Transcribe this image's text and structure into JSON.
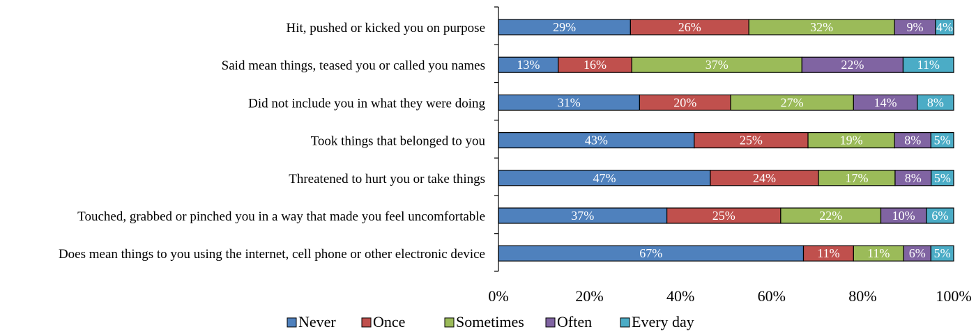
{
  "chart_data": {
    "type": "bar",
    "orientation": "horizontal",
    "stacked": "percent",
    "categories": [
      "Hit, pushed or kicked you on purpose",
      "Said mean things, teased you or called you names",
      "Did not include you in what they were doing",
      "Took things that belonged to you",
      "Threatened to hurt you or take things",
      "Touched, grabbed or pinched you in a way that made you feel uncomfortable",
      "Does mean things to you using the internet, cell phone or other electronic device"
    ],
    "series": [
      {
        "name": "Never",
        "color": "#4F81BD",
        "values": [
          29,
          13,
          31,
          43,
          47,
          37,
          67
        ],
        "labels": [
          "29%",
          "13%",
          "31%",
          "43%",
          "47%",
          "37%",
          "67%"
        ]
      },
      {
        "name": "Once",
        "color": "#C0504D",
        "values": [
          26,
          16,
          20,
          25,
          24,
          25,
          11
        ],
        "labels": [
          "26%",
          "16%",
          "20%",
          "25%",
          "24%",
          "25%",
          "11%"
        ]
      },
      {
        "name": "Sometimes",
        "color": "#9BBB59",
        "values": [
          32,
          37,
          27,
          19,
          17,
          22,
          11
        ],
        "labels": [
          "32%",
          "37%",
          "27%",
          "19%",
          "17%",
          "22%",
          "11%"
        ]
      },
      {
        "name": "Often",
        "color": "#8064A2",
        "values": [
          9,
          22,
          14,
          8,
          8,
          10,
          6
        ],
        "labels": [
          "9%",
          "22%",
          "14%",
          "8%",
          "8%",
          "10%",
          "6%"
        ]
      },
      {
        "name": "Every day",
        "color": "#4BACC6",
        "values": [
          4,
          11,
          8,
          5,
          5,
          6,
          5
        ],
        "labels": [
          "4%",
          "11%",
          "8%",
          "5%",
          "5%",
          "6%",
          "5%"
        ]
      }
    ],
    "xlim": [
      0,
      1
    ],
    "xticks": [
      "0%",
      "20%",
      "40%",
      "60%",
      "80%",
      "100%"
    ],
    "title": "",
    "xlabel": "",
    "ylabel": "",
    "grid": false,
    "legend": "bottom-center"
  }
}
